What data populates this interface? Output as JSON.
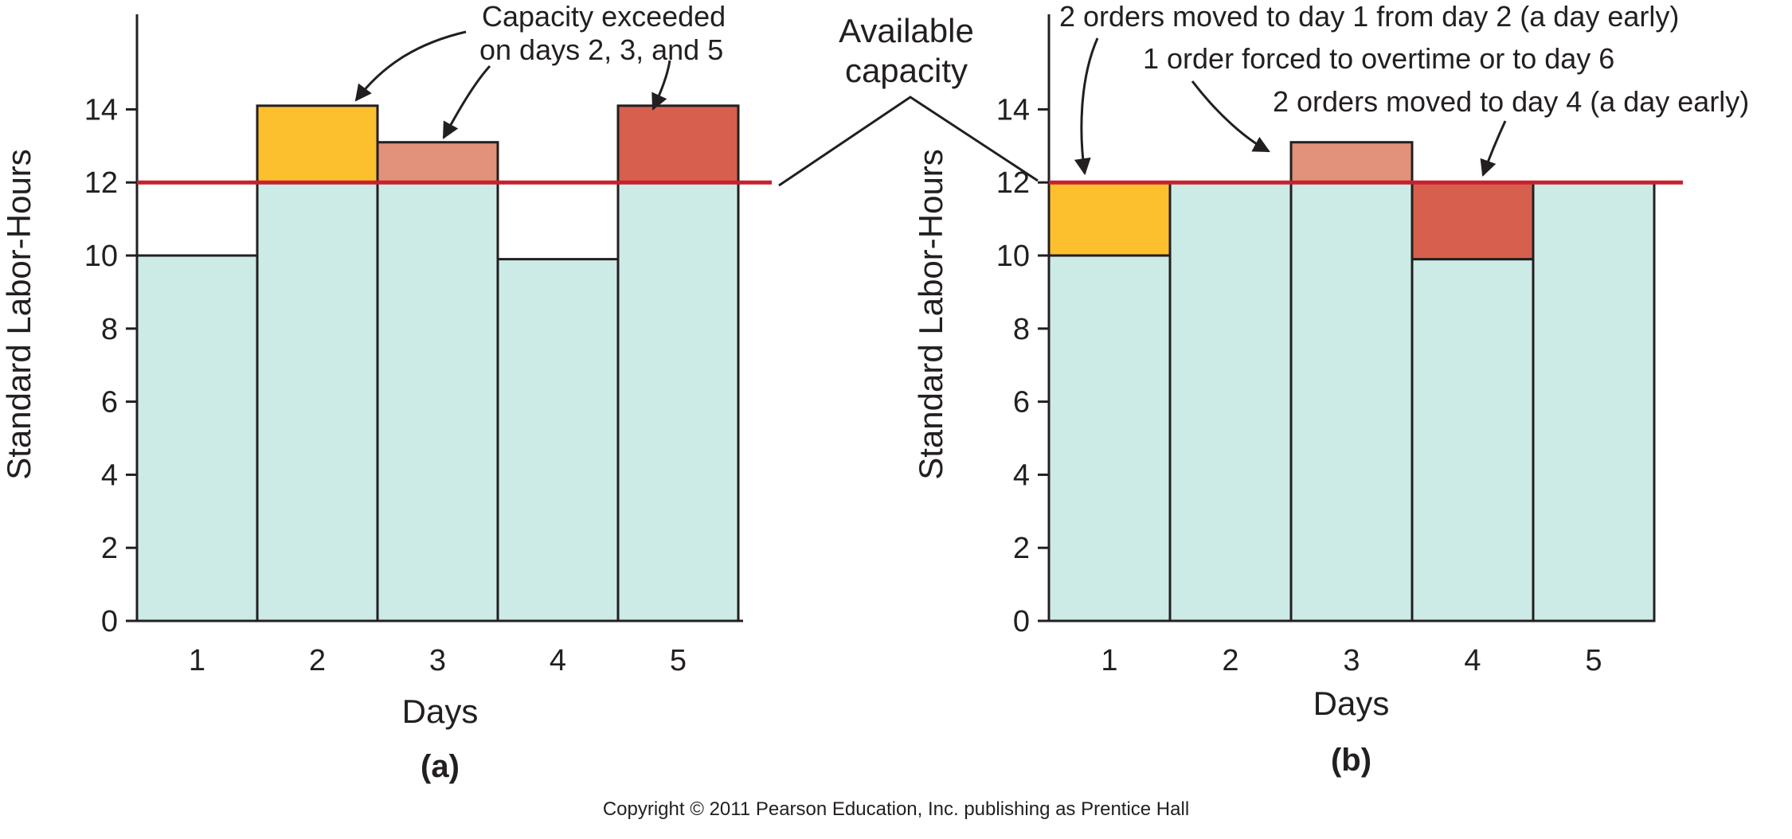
{
  "chart_data": [
    {
      "type": "bar",
      "panel_label": "(a)",
      "xlabel": "Days",
      "ylabel": "Standard Labor-Hours",
      "ylim": [
        0,
        16
      ],
      "yticks": [
        0,
        2,
        4,
        6,
        8,
        10,
        12,
        14
      ],
      "categories": [
        "1",
        "2",
        "3",
        "4",
        "5"
      ],
      "capacity": 12,
      "base_values": [
        10,
        12,
        12,
        9.9,
        12
      ],
      "excess_segments": [
        {
          "day": "2",
          "from": 12,
          "to": 14.1,
          "color": "#fcbf2e"
        },
        {
          "day": "3",
          "from": 12,
          "to": 13.1,
          "color": "#e2917a"
        },
        {
          "day": "5",
          "from": 12,
          "to": 14.1,
          "color": "#d6604d"
        }
      ],
      "annotations": [
        "Capacity exceeded",
        "on days 2, 3, and 5"
      ]
    },
    {
      "type": "bar",
      "panel_label": "(b)",
      "xlabel": "Days",
      "ylabel": "Standard Labor-Hours",
      "ylim": [
        0,
        16
      ],
      "yticks": [
        0,
        2,
        4,
        6,
        8,
        10,
        12,
        14
      ],
      "categories": [
        "1",
        "2",
        "3",
        "4",
        "5"
      ],
      "capacity": 12,
      "base_values": [
        10,
        12,
        12,
        9.9,
        12
      ],
      "excess_segments": [
        {
          "day": "1",
          "from": 10,
          "to": 12,
          "color": "#fcbf2e"
        },
        {
          "day": "3",
          "from": 12,
          "to": 13.1,
          "color": "#e2917a"
        },
        {
          "day": "4",
          "from": 9.9,
          "to": 12,
          "color": "#d6604d"
        }
      ],
      "annotations": [
        "2 orders moved to day 1 from day 2 (a day early)",
        "1 order forced to overtime or to day 6",
        "2 orders moved to day 4 (a day early)"
      ]
    }
  ],
  "shared_label": [
    "Available",
    "capacity"
  ],
  "copyright": "Copyright © 2011 Pearson Education, Inc. publishing as Prentice Hall",
  "colors": {
    "base_fill": "#cdebe6",
    "capacity_line": "#c8202f",
    "outline": "#231f20"
  }
}
